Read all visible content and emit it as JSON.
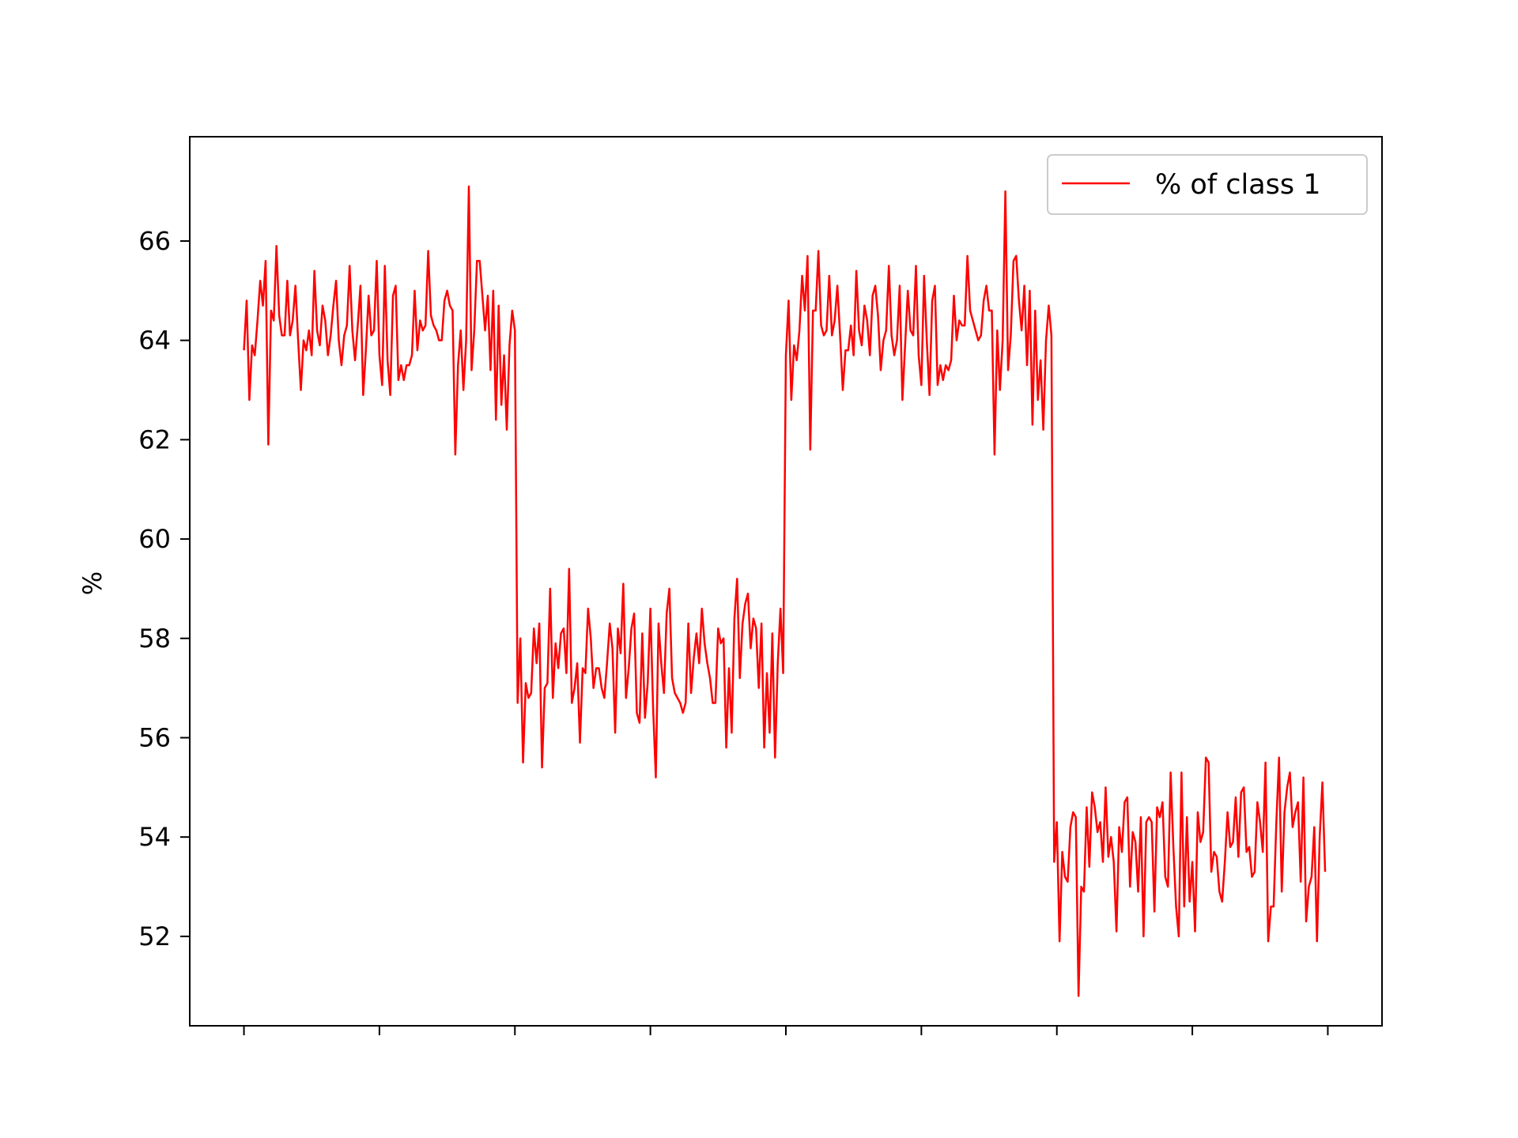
{
  "chart_data": {
    "type": "line",
    "title": "",
    "xlabel": "",
    "ylabel": "%",
    "ylim": [
      50.2,
      68.1
    ],
    "xlim": [
      -20,
      420
    ],
    "x_ticks": [
      0,
      50,
      100,
      150,
      200,
      250,
      300,
      350,
      400
    ],
    "x_tick_labels_visible": false,
    "y_ticks": [
      52,
      54,
      56,
      58,
      60,
      62,
      64,
      66
    ],
    "grid": false,
    "legend": {
      "position": "top-right"
    },
    "series": [
      {
        "name": "% of class 1",
        "color": "#ff0000",
        "x_start": 0,
        "x_step": 1,
        "values": [
          63.8,
          64.8,
          62.8,
          63.9,
          63.7,
          64.4,
          65.2,
          64.7,
          65.6,
          61.9,
          64.6,
          64.4,
          65.9,
          64.5,
          64.1,
          64.1,
          65.2,
          64.1,
          64.4,
          65.1,
          64.0,
          63.0,
          64.0,
          63.8,
          64.2,
          63.7,
          65.4,
          64.2,
          63.9,
          64.7,
          64.4,
          63.7,
          64.1,
          64.7,
          65.2,
          64.0,
          63.5,
          64.1,
          64.3,
          65.5,
          64.2,
          63.6,
          64.3,
          65.1,
          62.9,
          63.8,
          64.9,
          64.1,
          64.2,
          65.6,
          63.7,
          63.1,
          65.5,
          63.6,
          62.9,
          64.9,
          65.1,
          63.2,
          63.5,
          63.2,
          63.5,
          63.5,
          63.7,
          65.0,
          63.8,
          64.4,
          64.2,
          64.3,
          65.8,
          64.5,
          64.3,
          64.2,
          64.0,
          64.0,
          64.8,
          65.0,
          64.7,
          64.6,
          61.7,
          63.5,
          64.2,
          63.0,
          64.0,
          67.1,
          63.4,
          64.2,
          65.6,
          65.6,
          64.9,
          64.2,
          64.9,
          63.4,
          65.0,
          62.4,
          64.7,
          62.7,
          63.7,
          62.2,
          63.9,
          64.6,
          64.2,
          56.7,
          58.0,
          55.5,
          57.1,
          56.8,
          56.9,
          58.2,
          57.5,
          58.3,
          55.4,
          57.0,
          57.1,
          59.0,
          56.8,
          57.9,
          57.4,
          58.1,
          58.2,
          57.3,
          59.4,
          56.7,
          57.0,
          57.5,
          55.9,
          57.4,
          57.3,
          58.6,
          58.0,
          57.0,
          57.4,
          57.4,
          57.0,
          56.8,
          57.5,
          58.3,
          57.8,
          56.1,
          58.2,
          57.7,
          59.1,
          56.8,
          57.4,
          58.2,
          58.5,
          56.5,
          56.3,
          58.1,
          56.4,
          57.1,
          58.6,
          56.6,
          55.2,
          58.3,
          57.5,
          56.9,
          58.5,
          59.0,
          57.2,
          56.9,
          56.8,
          56.7,
          56.5,
          56.7,
          58.3,
          56.9,
          57.6,
          58.1,
          57.5,
          58.6,
          57.9,
          57.5,
          57.2,
          56.7,
          56.7,
          58.2,
          57.9,
          58.0,
          55.8,
          57.4,
          56.1,
          58.4,
          59.2,
          57.2,
          58.3,
          58.7,
          58.9,
          57.8,
          58.4,
          58.2,
          57.0,
          58.3,
          55.8,
          57.3,
          56.1,
          58.1,
          55.6,
          57.5,
          58.6,
          57.3,
          63.7,
          64.8,
          62.8,
          63.9,
          63.6,
          64.2,
          65.3,
          64.6,
          65.7,
          61.8,
          64.6,
          64.6,
          65.8,
          64.3,
          64.1,
          64.2,
          65.3,
          64.1,
          64.4,
          65.1,
          64.1,
          63.0,
          63.8,
          63.8,
          64.3,
          63.7,
          65.4,
          64.2,
          63.9,
          64.7,
          64.4,
          63.7,
          64.9,
          65.1,
          64.5,
          63.4,
          64.0,
          64.2,
          65.5,
          64.1,
          63.7,
          64.0,
          65.1,
          62.8,
          63.9,
          65.0,
          64.2,
          64.1,
          65.5,
          63.7,
          63.1,
          65.3,
          64.0,
          62.9,
          64.8,
          65.1,
          63.1,
          63.5,
          63.2,
          63.5,
          63.4,
          63.6,
          64.9,
          64.0,
          64.4,
          64.3,
          64.3,
          65.7,
          64.6,
          64.4,
          64.2,
          64.0,
          64.1,
          64.8,
          65.1,
          64.6,
          64.6,
          61.7,
          64.2,
          63.0,
          64.0,
          67.0,
          63.4,
          64.1,
          65.6,
          65.7,
          64.8,
          64.2,
          65.1,
          63.5,
          65.0,
          62.3,
          64.6,
          62.8,
          63.6,
          62.2,
          64.0,
          64.7,
          64.1,
          53.5,
          54.3,
          51.9,
          53.7,
          53.2,
          53.1,
          54.2,
          54.5,
          54.4,
          50.8,
          53.0,
          52.9,
          54.6,
          53.4,
          54.9,
          54.6,
          54.1,
          54.3,
          53.5,
          55.0,
          53.6,
          54.0,
          53.5,
          52.1,
          54.2,
          53.7,
          54.7,
          54.8,
          53.0,
          54.1,
          53.9,
          52.9,
          54.4,
          52.0,
          54.3,
          54.4,
          54.3,
          52.5,
          54.6,
          54.4,
          54.7,
          53.2,
          53.0,
          55.3,
          53.8,
          52.6,
          52.0,
          55.3,
          52.6,
          54.4,
          52.7,
          53.5,
          52.1,
          54.5,
          53.9,
          54.1,
          55.6,
          55.5,
          53.3,
          53.7,
          53.6,
          52.9,
          52.7,
          53.5,
          54.5,
          53.8,
          53.9,
          54.8,
          53.6,
          54.9,
          55.0,
          53.7,
          53.8,
          53.2,
          53.3,
          54.7,
          54.3,
          53.7,
          55.5,
          51.9,
          52.6,
          52.6,
          54.3,
          55.6,
          52.9,
          54.5,
          55.0,
          55.3,
          54.2,
          54.5,
          54.7,
          53.1,
          55.2,
          52.3,
          53.0,
          53.2,
          54.2,
          51.9,
          54.0,
          55.1,
          53.3
        ]
      }
    ]
  }
}
